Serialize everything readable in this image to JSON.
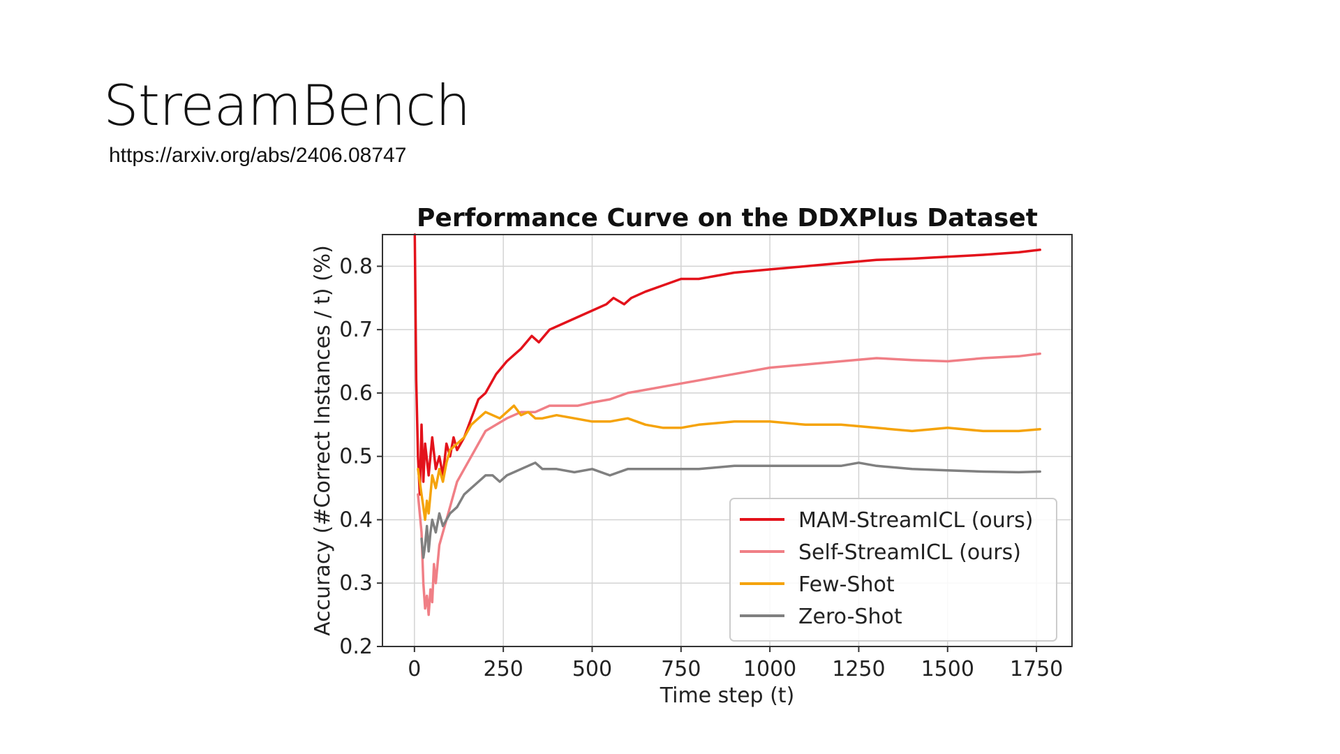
{
  "slide": {
    "title": "StreamBench",
    "link": "https://arxiv.org/abs/2406.08747"
  },
  "chart_data": {
    "type": "line",
    "title": "Performance Curve on the DDXPlus Dataset",
    "xlabel": "Time step (t)",
    "ylabel": "Accuracy (#Correct Instances / t) (%)",
    "xlim": [
      -90,
      1850
    ],
    "ylim": [
      0.2,
      0.85
    ],
    "xticks": [
      0,
      250,
      500,
      750,
      1000,
      1250,
      1500,
      1750
    ],
    "yticks": [
      0.2,
      0.3,
      0.4,
      0.5,
      0.6,
      0.7,
      0.8
    ],
    "xtick_labels": [
      "0",
      "250",
      "500",
      "750",
      "1000",
      "1250",
      "1500",
      "1750"
    ],
    "ytick_labels": [
      "0.2",
      "0.3",
      "0.4",
      "0.5",
      "0.6",
      "0.7",
      "0.8"
    ],
    "grid": true,
    "legend_position": "lower-right",
    "series": [
      {
        "name": "MAM-StreamICL (ours)",
        "color": "#e3121b",
        "x": [
          1,
          5,
          10,
          15,
          20,
          25,
          30,
          40,
          50,
          60,
          70,
          80,
          90,
          100,
          110,
          120,
          140,
          160,
          180,
          200,
          230,
          260,
          300,
          330,
          350,
          380,
          420,
          460,
          500,
          540,
          560,
          590,
          610,
          650,
          700,
          750,
          800,
          850,
          900,
          1000,
          1100,
          1200,
          1300,
          1400,
          1500,
          1600,
          1700,
          1760
        ],
        "y": [
          0.85,
          0.62,
          0.5,
          0.44,
          0.55,
          0.46,
          0.52,
          0.47,
          0.53,
          0.48,
          0.5,
          0.47,
          0.52,
          0.5,
          0.53,
          0.51,
          0.53,
          0.56,
          0.59,
          0.6,
          0.63,
          0.65,
          0.67,
          0.69,
          0.68,
          0.7,
          0.71,
          0.72,
          0.73,
          0.74,
          0.75,
          0.74,
          0.75,
          0.76,
          0.77,
          0.78,
          0.78,
          0.785,
          0.79,
          0.795,
          0.8,
          0.805,
          0.81,
          0.812,
          0.815,
          0.818,
          0.822,
          0.826
        ]
      },
      {
        "name": "Self-StreamICL (ours)",
        "color": "#f07f86",
        "x": [
          10,
          20,
          25,
          30,
          35,
          40,
          45,
          50,
          55,
          60,
          70,
          80,
          90,
          100,
          120,
          140,
          160,
          180,
          200,
          230,
          260,
          300,
          340,
          380,
          420,
          460,
          500,
          550,
          600,
          650,
          700,
          750,
          800,
          850,
          900,
          950,
          1000,
          1100,
          1200,
          1300,
          1400,
          1500,
          1600,
          1700,
          1760
        ],
        "y": [
          0.44,
          0.38,
          0.3,
          0.26,
          0.28,
          0.25,
          0.29,
          0.27,
          0.33,
          0.3,
          0.36,
          0.38,
          0.4,
          0.42,
          0.46,
          0.48,
          0.5,
          0.52,
          0.54,
          0.55,
          0.56,
          0.57,
          0.57,
          0.58,
          0.58,
          0.58,
          0.585,
          0.59,
          0.6,
          0.605,
          0.61,
          0.615,
          0.62,
          0.625,
          0.63,
          0.635,
          0.64,
          0.645,
          0.65,
          0.655,
          0.652,
          0.65,
          0.655,
          0.658,
          0.662
        ]
      },
      {
        "name": "Few-Shot",
        "color": "#f5a30a",
        "x": [
          10,
          20,
          25,
          30,
          35,
          40,
          45,
          50,
          60,
          70,
          80,
          90,
          100,
          120,
          140,
          160,
          180,
          200,
          220,
          240,
          260,
          280,
          300,
          320,
          340,
          360,
          400,
          450,
          500,
          550,
          600,
          650,
          700,
          750,
          800,
          900,
          1000,
          1100,
          1200,
          1300,
          1400,
          1500,
          1600,
          1700,
          1760
        ],
        "y": [
          0.48,
          0.44,
          0.42,
          0.4,
          0.43,
          0.41,
          0.44,
          0.47,
          0.45,
          0.48,
          0.46,
          0.49,
          0.51,
          0.52,
          0.53,
          0.55,
          0.56,
          0.57,
          0.565,
          0.56,
          0.57,
          0.58,
          0.565,
          0.57,
          0.56,
          0.56,
          0.565,
          0.56,
          0.555,
          0.555,
          0.56,
          0.55,
          0.545,
          0.545,
          0.55,
          0.555,
          0.555,
          0.55,
          0.55,
          0.545,
          0.54,
          0.545,
          0.54,
          0.54,
          0.543
        ]
      },
      {
        "name": "Zero-Shot",
        "color": "#808080",
        "x": [
          20,
          25,
          30,
          35,
          40,
          45,
          50,
          60,
          70,
          80,
          90,
          100,
          120,
          140,
          160,
          180,
          200,
          220,
          240,
          260,
          280,
          300,
          320,
          340,
          360,
          400,
          450,
          500,
          550,
          600,
          700,
          800,
          900,
          1000,
          1100,
          1200,
          1250,
          1300,
          1400,
          1500,
          1600,
          1700,
          1760
        ],
        "y": [
          0.37,
          0.34,
          0.36,
          0.39,
          0.35,
          0.38,
          0.4,
          0.38,
          0.41,
          0.39,
          0.4,
          0.41,
          0.42,
          0.44,
          0.45,
          0.46,
          0.47,
          0.47,
          0.46,
          0.47,
          0.475,
          0.48,
          0.485,
          0.49,
          0.48,
          0.48,
          0.475,
          0.48,
          0.47,
          0.48,
          0.48,
          0.48,
          0.485,
          0.485,
          0.485,
          0.485,
          0.49,
          0.485,
          0.48,
          0.478,
          0.476,
          0.475,
          0.476
        ]
      }
    ]
  }
}
